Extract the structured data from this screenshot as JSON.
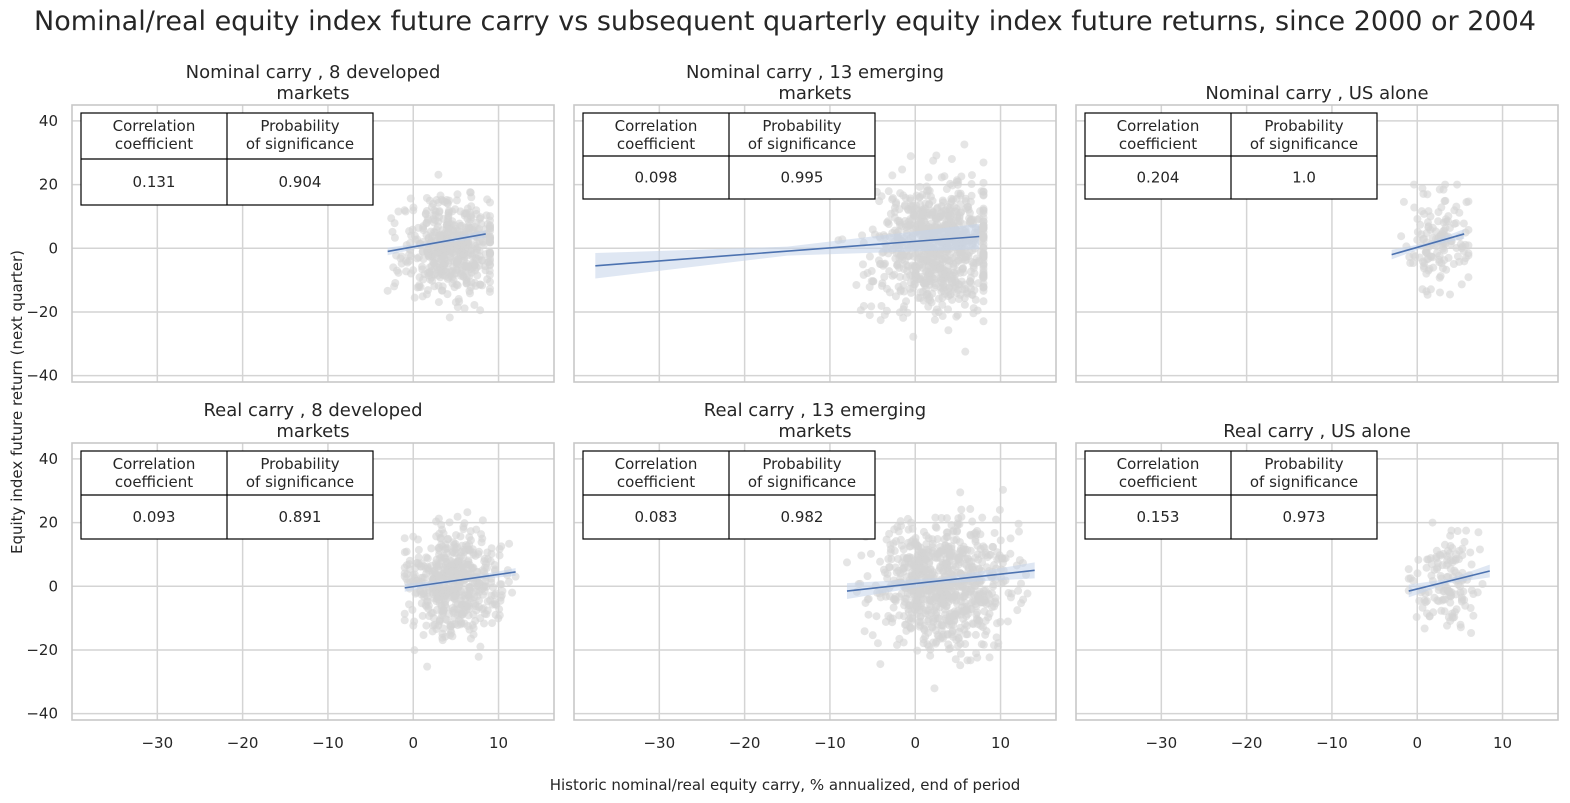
{
  "figure": {
    "title": "Nominal/real equity index future carry vs subsequent quarterly equity index future returns, since 2000 or 2004",
    "xlabel": "Historic nominal/real equity carry, % annualized, end of period",
    "ylabel": "Equity index future return (next quarter)"
  },
  "table_headers": {
    "corr_l1": "Correlation",
    "corr_l2": "coefficient",
    "prob_l1": "Probability",
    "prob_l2": "of significance"
  },
  "colors": {
    "points": "#d3d3d3",
    "line": "#4c72b0",
    "band": "#c5d3ea",
    "grid": "#d4d4d4",
    "frame": "#c8c8c8"
  },
  "chart_data": [
    {
      "type": "scatter",
      "title_l1": "Nominal carry , 8 developed",
      "title_l2": "markets",
      "corr": "0.131",
      "prob": "0.904",
      "xlim": [
        -40,
        16.5
      ],
      "ylim": [
        -42,
        45
      ],
      "xticks": [
        -30,
        -20,
        -10,
        0,
        10
      ],
      "yticks": [
        40,
        20,
        0,
        -20,
        -40
      ],
      "cloud": {
        "cx": 4.5,
        "sx": 2.8,
        "cy": 0.5,
        "sy": 7.5,
        "n": 520,
        "xmin": -3,
        "xmax": 9,
        "ymin": -27,
        "ymax": 24
      },
      "fit": {
        "x": [
          -3,
          8.5
        ],
        "y": [
          -1,
          4.5
        ],
        "band": 1.2
      }
    },
    {
      "type": "scatter",
      "title_l1": "Nominal carry , 13 emerging",
      "title_l2": "markets",
      "corr": "0.098",
      "prob": "0.995",
      "xlim": [
        -40,
        16.5
      ],
      "ylim": [
        -42,
        45
      ],
      "xticks": [
        -30,
        -20,
        -10,
        0,
        10
      ],
      "yticks": [
        40,
        20,
        0,
        -20,
        -40
      ],
      "cloud": {
        "cx": 2.5,
        "sx": 3.5,
        "cy": 0.5,
        "sy": 10,
        "n": 820,
        "xmin": -12,
        "xmax": 8,
        "ymin": -39,
        "ymax": 40
      },
      "fit": {
        "x": [
          -37.5,
          7.5
        ],
        "y": [
          -5.5,
          3.7
        ],
        "band": 4
      }
    },
    {
      "type": "scatter",
      "title_l1": "Nominal carry , US alone",
      "title_l2": "",
      "corr": "0.204",
      "prob": "1.0",
      "xlim": [
        -40,
        16.5
      ],
      "ylim": [
        -42,
        45
      ],
      "xticks": [
        -30,
        -20,
        -10,
        0,
        10
      ],
      "yticks": [
        40,
        20,
        0,
        -20,
        -40
      ],
      "cloud": {
        "cx": 2.5,
        "sx": 1.8,
        "cy": 1.5,
        "sy": 7,
        "n": 140,
        "xmin": -3,
        "xmax": 6,
        "ymin": -20,
        "ymax": 20
      },
      "fit": {
        "x": [
          -3,
          5.5
        ],
        "y": [
          -2,
          4.5
        ],
        "band": 1.5
      }
    },
    {
      "type": "scatter",
      "title_l1": "Real carry , 8 developed",
      "title_l2": "markets",
      "corr": "0.093",
      "prob": "0.891",
      "xlim": [
        -40,
        16.5
      ],
      "ylim": [
        -42,
        45
      ],
      "xticks": [
        -30,
        -20,
        -10,
        0,
        10
      ],
      "yticks": [
        40,
        20,
        0,
        -20,
        -40
      ],
      "cloud": {
        "cx": 5,
        "sx": 2.7,
        "cy": 1,
        "sy": 8,
        "n": 520,
        "xmin": -1,
        "xmax": 12,
        "ymin": -26,
        "ymax": 24
      },
      "fit": {
        "x": [
          -1,
          12
        ],
        "y": [
          -0.5,
          4.5
        ],
        "band": 1.2
      }
    },
    {
      "type": "scatter",
      "title_l1": "Real carry , 13 emerging",
      "title_l2": "markets",
      "corr": "0.083",
      "prob": "0.982",
      "xlim": [
        -40,
        16.5
      ],
      "ylim": [
        -42,
        45
      ],
      "xticks": [
        -30,
        -20,
        -10,
        0,
        10
      ],
      "yticks": [
        40,
        20,
        0,
        -20,
        -40
      ],
      "cloud": {
        "cx": 3,
        "sx": 3.8,
        "cy": 1,
        "sy": 10,
        "n": 820,
        "xmin": -8,
        "xmax": 14,
        "ymin": -39,
        "ymax": 40
      },
      "fit": {
        "x": [
          -8,
          14
        ],
        "y": [
          -1.5,
          5
        ],
        "band": 2.5
      }
    },
    {
      "type": "scatter",
      "title_l1": "Real carry , US alone",
      "title_l2": "",
      "corr": "0.153",
      "prob": "0.973",
      "xlim": [
        -40,
        16.5
      ],
      "ylim": [
        -42,
        45
      ],
      "xticks": [
        -30,
        -20,
        -10,
        0,
        10
      ],
      "yticks": [
        40,
        20,
        0,
        -20,
        -40
      ],
      "cloud": {
        "cx": 3.5,
        "sx": 2,
        "cy": 1.5,
        "sy": 7.5,
        "n": 140,
        "xmin": -1,
        "xmax": 9,
        "ymin": -20,
        "ymax": 20
      },
      "fit": {
        "x": [
          -1,
          8.5
        ],
        "y": [
          -1.5,
          4.8
        ],
        "band": 2
      }
    }
  ]
}
